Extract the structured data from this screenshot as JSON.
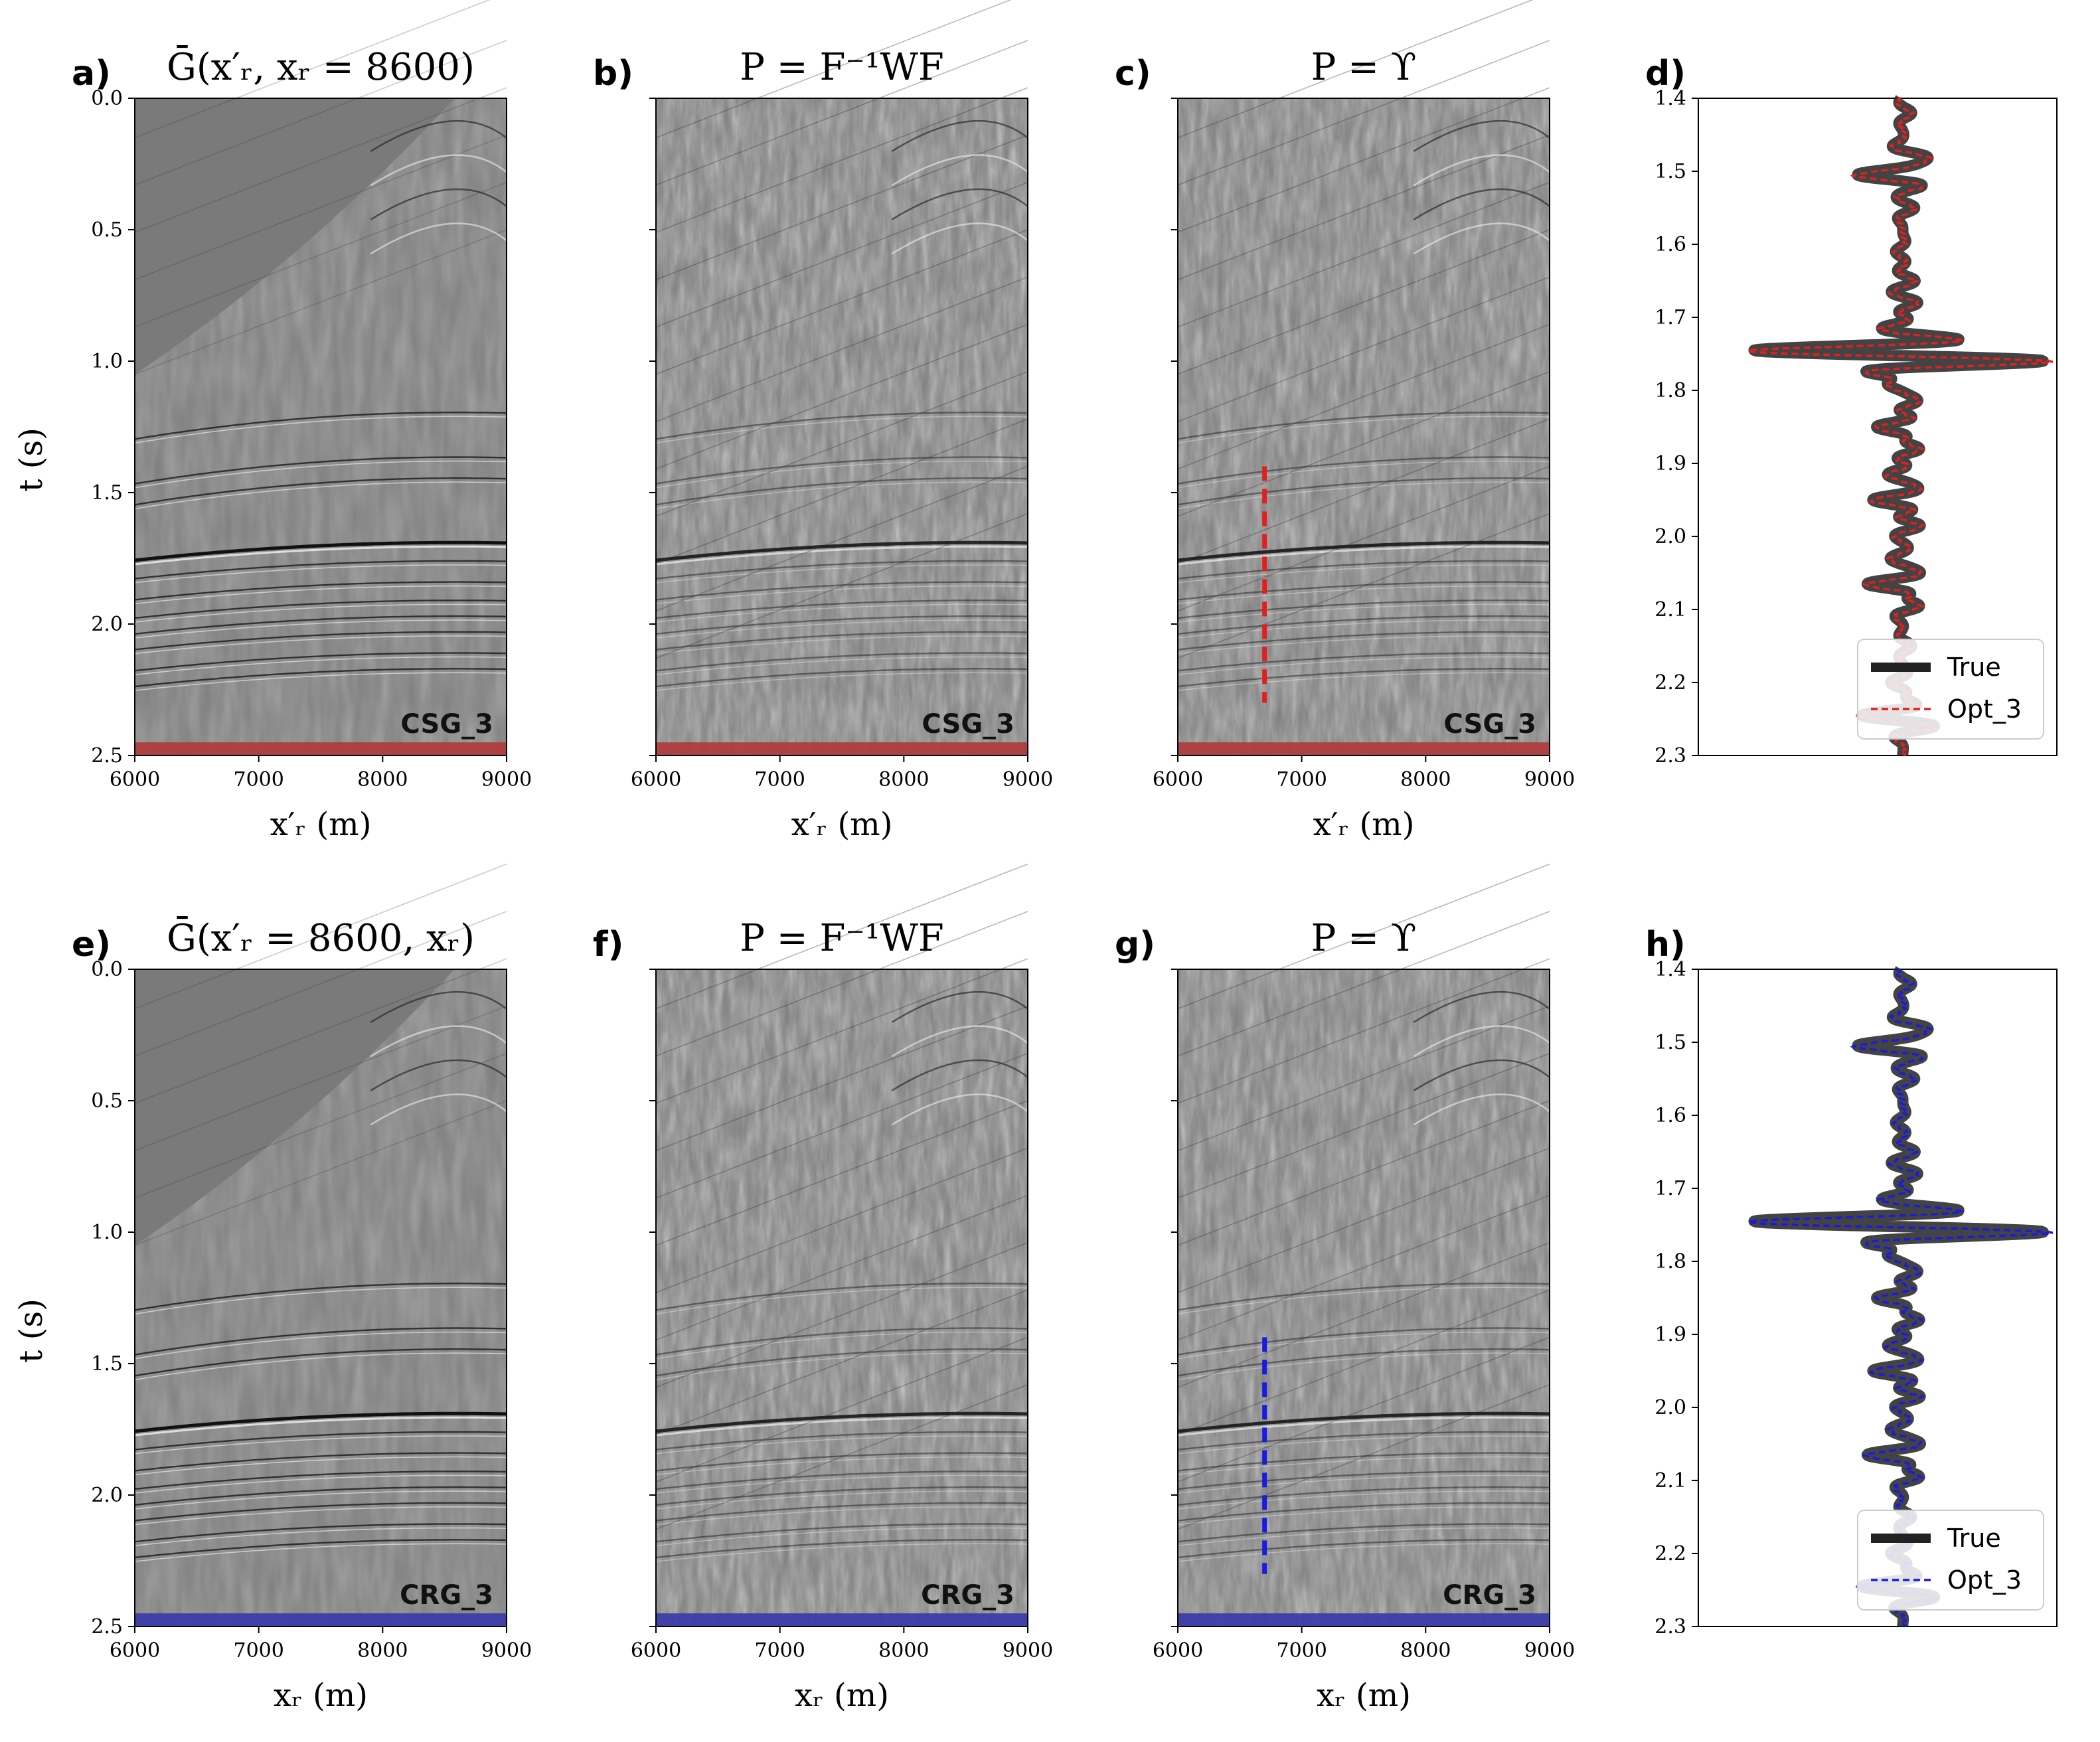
{
  "figure": {
    "rows": [
      {
        "panels": [
          {
            "label": "a)",
            "title": "Ḡ(x′ᵣ, xᵣ = 8600)",
            "badge": "CSG_3",
            "xlabel": "x′ᵣ (m)",
            "ylabel": "t (s)",
            "pick": false,
            "style": "green"
          },
          {
            "label": "b)",
            "title": "P = F⁻¹WF",
            "badge": "CSG_3",
            "xlabel": "x′ᵣ (m)",
            "ylabel": "",
            "pick": false,
            "style": "proc"
          },
          {
            "label": "c)",
            "title": "P = ϒ",
            "badge": "CSG_3",
            "xlabel": "x′ᵣ (m)",
            "ylabel": "",
            "pick": true,
            "style": "proc"
          }
        ],
        "trace": {
          "label": "d)",
          "legend_true": "True",
          "legend_est": "Opt_3"
        }
      },
      {
        "panels": [
          {
            "label": "e)",
            "title": "Ḡ(x′ᵣ = 8600, xᵣ)",
            "badge": "CRG_3",
            "xlabel": "xᵣ (m)",
            "ylabel": "t (s)",
            "pick": false,
            "style": "green"
          },
          {
            "label": "f)",
            "title": "P = F⁻¹WF",
            "badge": "CRG_3",
            "xlabel": "xᵣ (m)",
            "ylabel": "",
            "pick": false,
            "style": "proc"
          },
          {
            "label": "g)",
            "title": "P = ϒ",
            "badge": "CRG_3",
            "xlabel": "xᵣ (m)",
            "ylabel": "",
            "pick": true,
            "style": "proc"
          }
        ],
        "trace": {
          "label": "h)",
          "legend_true": "True",
          "legend_est": "Opt_3"
        }
      }
    ]
  },
  "chart_data": [
    {
      "type": "heatmap",
      "description": "seismic gather images",
      "x_range": [
        6000,
        9000
      ],
      "x_ticks": [
        6000,
        7000,
        8000,
        9000
      ],
      "t_range": [
        0.0,
        2.5
      ],
      "t_ticks": [
        0.0,
        0.5,
        1.0,
        1.5,
        2.0,
        2.5
      ],
      "pick_trace_x": 6700,
      "pick_t_range": [
        1.4,
        2.3
      ],
      "reflector_times": [
        1.33,
        1.5,
        1.58,
        1.78,
        1.85,
        1.93,
        2.0,
        2.06,
        2.12,
        2.2,
        2.26
      ],
      "row_colors": [
        "#b03a3a",
        "#3a3aa8"
      ]
    },
    {
      "type": "line",
      "description": "trace comparison at the picked position",
      "y_range": [
        1.4,
        2.3
      ],
      "y_ticks": [
        1.4,
        1.5,
        1.6,
        1.7,
        1.8,
        1.9,
        2.0,
        2.1,
        2.2,
        2.3
      ],
      "y_inverted": true,
      "series": [
        {
          "name": "True",
          "color": "#222222"
        },
        {
          "name": "Opt_3",
          "colors": [
            "#e02020",
            "#1a1ae0"
          ]
        }
      ],
      "events": [
        {
          "t": 1.42,
          "a": 0.15
        },
        {
          "t": 1.48,
          "a": 0.4
        },
        {
          "t": 1.505,
          "a": -0.75
        },
        {
          "t": 1.55,
          "a": 0.2
        },
        {
          "t": 1.61,
          "a": -0.12
        },
        {
          "t": 1.65,
          "a": 0.2
        },
        {
          "t": 1.68,
          "a": 0.25
        },
        {
          "t": 1.715,
          "a": -0.3
        },
        {
          "t": 1.745,
          "a": -1.8
        },
        {
          "t": 1.76,
          "a": 1.6
        },
        {
          "t": 1.79,
          "a": -0.3
        },
        {
          "t": 1.815,
          "a": 0.25
        },
        {
          "t": 1.85,
          "a": -0.45
        },
        {
          "t": 1.88,
          "a": 0.3
        },
        {
          "t": 1.915,
          "a": -0.25
        },
        {
          "t": 1.95,
          "a": -0.5
        },
        {
          "t": 1.985,
          "a": 0.3
        },
        {
          "t": 2.03,
          "a": -0.2
        },
        {
          "t": 2.065,
          "a": -0.6
        },
        {
          "t": 2.095,
          "a": 0.3
        },
        {
          "t": 2.15,
          "a": 0.15
        },
        {
          "t": 2.2,
          "a": -0.2
        },
        {
          "t": 2.245,
          "a": -0.55
        },
        {
          "t": 2.26,
          "a": 0.3
        }
      ]
    }
  ]
}
